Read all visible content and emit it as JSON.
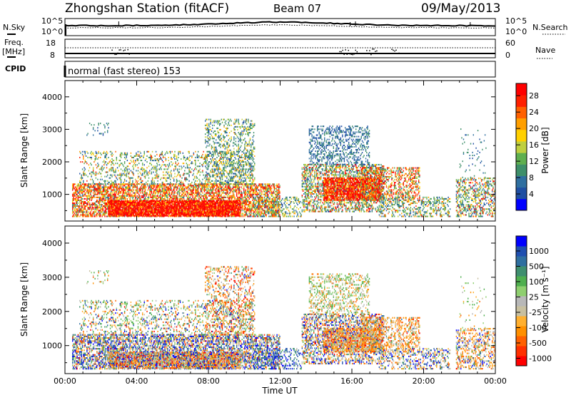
{
  "header": {
    "station": "Zhongshan Station (fitACF)",
    "beam": "Beam 07",
    "date": "09/May/2013",
    "cpid_label": "CPID",
    "cpid_value": "normal (fast stereo) 153"
  },
  "nsky_panel": {
    "left_label": "N.Sky",
    "right_label": "N.Search",
    "left_ticks": [
      "10^5",
      "10^0"
    ],
    "right_ticks": [
      "10^5",
      "10^0"
    ]
  },
  "freq_panel": {
    "left_label_1": "Freq.",
    "left_label_2": "[MHz]",
    "right_label": "Nave",
    "left_ticks": [
      "18",
      "8"
    ],
    "right_ticks": [
      "60",
      "0"
    ]
  },
  "colors": {
    "power": [
      "#0000ff",
      "#1f4fa3",
      "#2f6fa0",
      "#3e8f6a",
      "#5faf4f",
      "#bfcf3f",
      "#ffd000",
      "#ff9f00",
      "#ff6000",
      "#ff2000",
      "#ff0000"
    ],
    "velocity": [
      "#ff0000",
      "#ff3000",
      "#ff6000",
      "#ff9000",
      "#ffb030",
      "#c8c0a0",
      "#b8b8b8",
      "#8fcf6f",
      "#4faf4f",
      "#3f8f6f",
      "#2f6fa0",
      "#1f4fb0",
      "#0000ff"
    ]
  },
  "chart_data": [
    {
      "type": "heatmap",
      "panel": "power",
      "ylabel": "Slant Range [km]",
      "ylim": [
        180,
        4500
      ],
      "y_ticks": [
        "1000",
        "2000",
        "3000",
        "4000"
      ],
      "x_range": [
        "00:00",
        "24:00"
      ],
      "colorbar": {
        "label": "Power [dB]",
        "ticks": [
          "4",
          "8",
          "12",
          "16",
          "20",
          "24",
          "28"
        ],
        "range": [
          0,
          31
        ]
      }
    },
    {
      "type": "heatmap",
      "panel": "velocity",
      "ylabel": "Slant Range [km]",
      "xlabel": "Time UT",
      "ylim": [
        180,
        4500
      ],
      "y_ticks": [
        "1000",
        "2000",
        "3000",
        "4000"
      ],
      "x_ticks": [
        "00:00",
        "04:00",
        "08:00",
        "12:00",
        "16:00",
        "20:00",
        "00:00"
      ],
      "colorbar": {
        "label": "Velocity [m s⁻¹]",
        "ticks": [
          "1000",
          "500",
          "100",
          "25",
          "-25",
          "-100",
          "-500",
          "-1000"
        ]
      }
    }
  ]
}
